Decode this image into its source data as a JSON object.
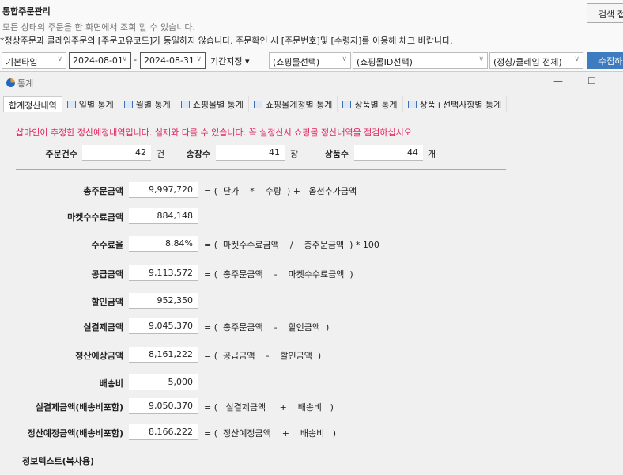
{
  "header": {
    "title": "통합주문관리",
    "subtitle": "모든 상태의 주문을 한 화면에서 조회 할 수 있습니다.",
    "warning": "*정상주문과 클레임주문의 [주문고유코드]가 동일하지 않습니다. 주문확인 시 [주문번호]및 [수령자]를 이용해 체크 바랍니다.",
    "search_button": "검색 접"
  },
  "filters": {
    "type": "기본타입",
    "date_from": "2024-08-01",
    "date_sep": "-",
    "date_to": "2024-08-31",
    "period": "기간지정",
    "mall": "(쇼핑몰선택)",
    "mall_id": "(쇼핑몰ID선택)",
    "claim": "(정상/클레임 전체)",
    "collect_button": "수집하"
  },
  "dialog": {
    "title": "통계",
    "minimize": "—",
    "maximize": "☐",
    "tabs": [
      {
        "label": "합계정산내역"
      },
      {
        "label": "일별 통계"
      },
      {
        "label": "월별 통계"
      },
      {
        "label": "쇼핑몰별 통계"
      },
      {
        "label": "쇼핑몰계정별 통계"
      },
      {
        "label": "상품별 통계"
      },
      {
        "label": "상품+선택사항별 통계"
      }
    ],
    "notice": "샵마인이 추정한 정산예정내역입니다. 실제와 다를 수 있습니다. 꼭 실정산시 쇼핑몰 정산내역을 점검하십시오.",
    "counts": [
      {
        "label": "주문건수",
        "value": "42",
        "unit": "건"
      },
      {
        "label": "송장수",
        "value": "41",
        "unit": "장"
      },
      {
        "label": "상품수",
        "value": "44",
        "unit": "개"
      }
    ],
    "rows": [
      {
        "label": "총주문금액",
        "value": "9,997,720",
        "formula": "= (  단가    *    수량  ) +   옵션추가금액"
      },
      {
        "label": "마켓수수료금액",
        "value": "884,148",
        "formula": ""
      },
      {
        "label": "수수료율",
        "value": "8.84%",
        "formula": "= (  마켓수수료금액    /    총주문금액  ) * 100"
      },
      {
        "label": "공급금액",
        "value": "9,113,572",
        "formula": "= (  총주문금액    -    마켓수수료금액  )"
      },
      {
        "label": "할인금액",
        "value": "952,350",
        "formula": ""
      },
      {
        "label": "실결제금액",
        "value": "9,045,370",
        "formula": "= (  총주문금액    -    할인금액  )"
      },
      {
        "label": "정산예상금액",
        "value": "8,161,222",
        "formula": "= (  공급금액    -    할인금액  )"
      },
      {
        "label": "배송비",
        "value": "5,000",
        "formula": ""
      },
      {
        "label": "실결제금액(배송비포함)",
        "value": "9,050,370",
        "formula": "= (   실결제금액     +    배송비   )"
      },
      {
        "label": "정산예정금액(배송비포함)",
        "value": "8,166,222",
        "formula": "= (  정산예정금액    +    배송비   )"
      }
    ],
    "info_text_label": "정보텍스트(복사용)"
  }
}
